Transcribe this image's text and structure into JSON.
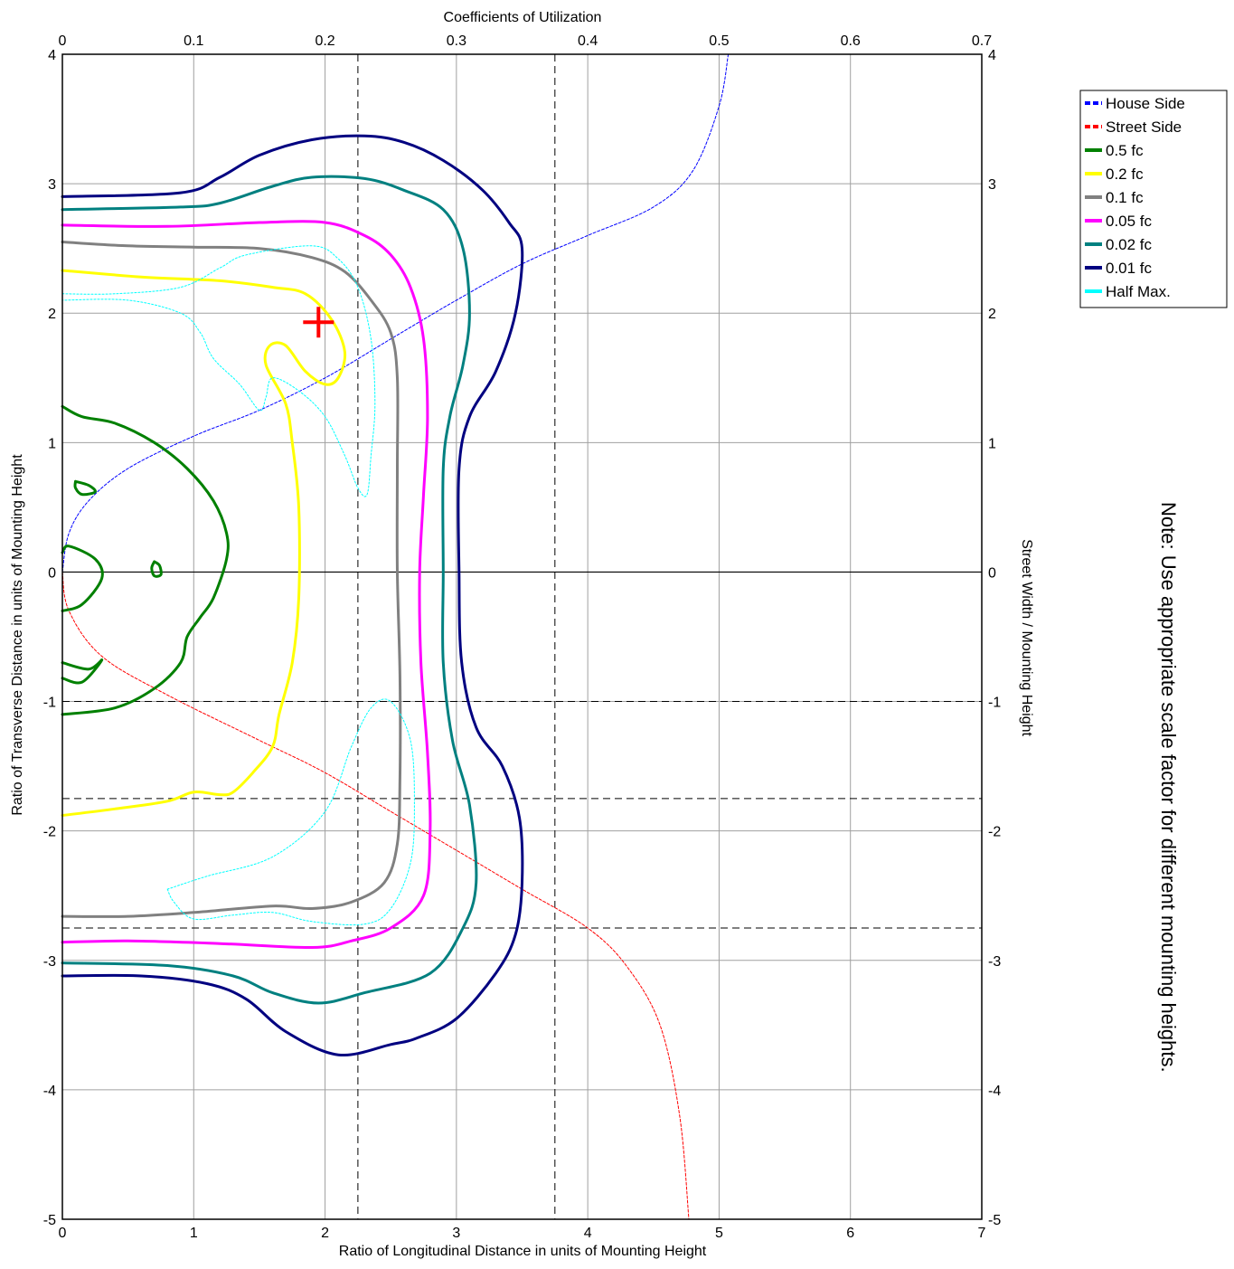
{
  "chart_data": {
    "type": "line",
    "title": "",
    "top_axis_label": "Coefficients of Utilization",
    "xlabel": "Ratio of Longitudinal Distance in units of Mounting Height",
    "ylabel_left": "Ratio of Transverse Distance in units of Mounting Height",
    "ylabel_right": "Street Width / Mounting Height",
    "xlim": [
      0,
      7
    ],
    "ylim": [
      -5,
      4
    ],
    "top_xlim": [
      0,
      0.7
    ],
    "x_ticks": [
      "0",
      "1",
      "2",
      "3",
      "4",
      "5",
      "6",
      "7"
    ],
    "y_ticks": [
      "4",
      "3",
      "2",
      "1",
      "0",
      "-1",
      "-2",
      "-3",
      "-4",
      "-5"
    ],
    "top_ticks": [
      "0",
      "0.1",
      "0.2",
      "0.3",
      "0.4",
      "0.5",
      "0.6",
      "0.7"
    ],
    "grid": true,
    "legend_position": "top-right",
    "reference_lines": {
      "vertical": [
        2.25,
        3.75
      ],
      "horizontal_dashed": [
        -1,
        -1.75,
        -2.75
      ],
      "horizontal_solid": [
        0
      ]
    },
    "max_candela_marker": {
      "x": 1.95,
      "y": 1.93,
      "color": "#ff0000"
    },
    "series": [
      {
        "name": "House Side",
        "color": "#0000ff",
        "style": "dashed",
        "points": [
          [
            0,
            0
          ],
          [
            0.05,
            0.3
          ],
          [
            0.2,
            0.55
          ],
          [
            0.5,
            0.8
          ],
          [
            1,
            1.05
          ],
          [
            1.5,
            1.25
          ],
          [
            2,
            1.5
          ],
          [
            2.5,
            1.8
          ],
          [
            3,
            2.1
          ],
          [
            3.5,
            2.38
          ],
          [
            4,
            2.6
          ],
          [
            4.5,
            2.82
          ],
          [
            4.8,
            3.1
          ],
          [
            5,
            3.6
          ],
          [
            5.07,
            4
          ]
        ]
      },
      {
        "name": "Street Side",
        "color": "#ff0000",
        "style": "dashed",
        "points": [
          [
            0,
            0
          ],
          [
            0.05,
            -0.3
          ],
          [
            0.3,
            -0.65
          ],
          [
            0.8,
            -0.95
          ],
          [
            1.5,
            -1.3
          ],
          [
            2,
            -1.55
          ],
          [
            2.5,
            -1.85
          ],
          [
            3,
            -2.15
          ],
          [
            3.5,
            -2.45
          ],
          [
            4,
            -2.75
          ],
          [
            4.3,
            -3.05
          ],
          [
            4.55,
            -3.5
          ],
          [
            4.7,
            -4.2
          ],
          [
            4.77,
            -5
          ]
        ]
      },
      {
        "name": "0.5 fc",
        "color": "#008000",
        "style": "solid",
        "paths": [
          [
            [
              0,
              1.28
            ],
            [
              0.15,
              1.2
            ],
            [
              0.4,
              1.15
            ],
            [
              0.7,
              1.0
            ],
            [
              0.95,
              0.8
            ],
            [
              1.15,
              0.55
            ],
            [
              1.25,
              0.3
            ],
            [
              1.25,
              0.1
            ],
            [
              1.15,
              -0.2
            ],
            [
              1.05,
              -0.35
            ],
            [
              0.95,
              -0.5
            ],
            [
              0.9,
              -0.7
            ],
            [
              0.7,
              -0.9
            ],
            [
              0.4,
              -1.05
            ],
            [
              0,
              -1.1
            ]
          ],
          [
            [
              0,
              -0.3
            ],
            [
              0.15,
              -0.25
            ],
            [
              0.3,
              -0.05
            ],
            [
              0.25,
              0.1
            ],
            [
              0.05,
              0.2
            ],
            [
              0,
              0.15
            ]
          ],
          [
            [
              0,
              -0.7
            ],
            [
              0.2,
              -0.75
            ],
            [
              0.3,
              -0.68
            ],
            [
              0.15,
              -0.85
            ],
            [
              0,
              -0.82
            ]
          ],
          [
            [
              0.1,
              0.7
            ],
            [
              0.2,
              0.67
            ],
            [
              0.25,
              0.62
            ],
            [
              0.15,
              0.6
            ],
            [
              0.1,
              0.65
            ],
            [
              0.1,
              0.7
            ]
          ],
          [
            [
              0.7,
              0.08
            ],
            [
              0.74,
              0.05
            ],
            [
              0.75,
              -0.02
            ],
            [
              0.7,
              -0.03
            ],
            [
              0.68,
              0.03
            ],
            [
              0.7,
              0.08
            ]
          ]
        ]
      },
      {
        "name": "0.2 fc",
        "color": "#ffff00",
        "style": "solid",
        "paths": [
          [
            [
              0,
              2.33
            ],
            [
              0.6,
              2.28
            ],
            [
              1.2,
              2.25
            ],
            [
              1.6,
              2.2
            ],
            [
              1.85,
              2.15
            ],
            [
              2.05,
              1.95
            ],
            [
              2.15,
              1.7
            ],
            [
              2.1,
              1.5
            ],
            [
              2.0,
              1.45
            ],
            [
              1.85,
              1.55
            ],
            [
              1.7,
              1.75
            ],
            [
              1.58,
              1.75
            ],
            [
              1.55,
              1.6
            ],
            [
              1.7,
              1.3
            ],
            [
              1.75,
              1.0
            ],
            [
              1.8,
              0.5
            ],
            [
              1.8,
              -0.2
            ],
            [
              1.75,
              -0.7
            ],
            [
              1.65,
              -1.1
            ],
            [
              1.6,
              -1.35
            ],
            [
              1.45,
              -1.55
            ],
            [
              1.3,
              -1.7
            ],
            [
              1.2,
              -1.72
            ],
            [
              1.0,
              -1.7
            ],
            [
              0.8,
              -1.77
            ],
            [
              0.4,
              -1.83
            ],
            [
              0,
              -1.88
            ]
          ]
        ]
      },
      {
        "name": "0.1 fc",
        "color": "#808080",
        "style": "solid",
        "paths": [
          [
            [
              0,
              2.55
            ],
            [
              0.5,
              2.52
            ],
            [
              1.0,
              2.51
            ],
            [
              1.5,
              2.5
            ],
            [
              1.9,
              2.43
            ],
            [
              2.15,
              2.32
            ],
            [
              2.35,
              2.1
            ],
            [
              2.5,
              1.85
            ],
            [
              2.55,
              1.5
            ],
            [
              2.55,
              0.8
            ],
            [
              2.55,
              0
            ],
            [
              2.57,
              -0.8
            ],
            [
              2.57,
              -1.6
            ],
            [
              2.55,
              -2.1
            ],
            [
              2.45,
              -2.4
            ],
            [
              2.2,
              -2.55
            ],
            [
              1.9,
              -2.6
            ],
            [
              1.6,
              -2.58
            ],
            [
              1.0,
              -2.63
            ],
            [
              0.5,
              -2.66
            ],
            [
              0,
              -2.66
            ]
          ]
        ]
      },
      {
        "name": "0.05 fc",
        "color": "#ff00ff",
        "style": "solid",
        "paths": [
          [
            [
              0,
              2.68
            ],
            [
              0.8,
              2.67
            ],
            [
              1.5,
              2.7
            ],
            [
              2.0,
              2.7
            ],
            [
              2.3,
              2.6
            ],
            [
              2.5,
              2.45
            ],
            [
              2.65,
              2.2
            ],
            [
              2.75,
              1.8
            ],
            [
              2.78,
              1.2
            ],
            [
              2.75,
              0.6
            ],
            [
              2.72,
              0
            ],
            [
              2.73,
              -0.7
            ],
            [
              2.78,
              -1.4
            ],
            [
              2.8,
              -2.0
            ],
            [
              2.75,
              -2.5
            ],
            [
              2.5,
              -2.75
            ],
            [
              2.2,
              -2.85
            ],
            [
              1.9,
              -2.9
            ],
            [
              1.2,
              -2.87
            ],
            [
              0.5,
              -2.85
            ],
            [
              0,
              -2.86
            ]
          ]
        ]
      },
      {
        "name": "0.02 fc",
        "color": "#008080",
        "style": "solid",
        "paths": [
          [
            [
              0,
              2.8
            ],
            [
              0.9,
              2.82
            ],
            [
              1.2,
              2.85
            ],
            [
              1.6,
              2.98
            ],
            [
              1.9,
              3.05
            ],
            [
              2.3,
              3.04
            ],
            [
              2.6,
              2.95
            ],
            [
              2.9,
              2.8
            ],
            [
              3.05,
              2.5
            ],
            [
              3.1,
              2.0
            ],
            [
              3.05,
              1.6
            ],
            [
              2.95,
              1.2
            ],
            [
              2.9,
              0.8
            ],
            [
              2.9,
              0
            ],
            [
              2.9,
              -0.7
            ],
            [
              2.97,
              -1.3
            ],
            [
              3.1,
              -1.8
            ],
            [
              3.15,
              -2.4
            ],
            [
              3.05,
              -2.75
            ],
            [
              2.8,
              -3.1
            ],
            [
              2.3,
              -3.25
            ],
            [
              1.95,
              -3.33
            ],
            [
              1.6,
              -3.25
            ],
            [
              1.3,
              -3.12
            ],
            [
              0.8,
              -3.04
            ],
            [
              0,
              -3.02
            ]
          ]
        ]
      },
      {
        "name": "0.01 fc",
        "color": "#000080",
        "style": "solid",
        "paths": [
          [
            [
              0,
              2.9
            ],
            [
              0.9,
              2.93
            ],
            [
              1.2,
              3.05
            ],
            [
              1.5,
              3.22
            ],
            [
              1.9,
              3.34
            ],
            [
              2.3,
              3.37
            ],
            [
              2.6,
              3.32
            ],
            [
              2.9,
              3.18
            ],
            [
              3.2,
              2.95
            ],
            [
              3.4,
              2.7
            ],
            [
              3.5,
              2.5
            ],
            [
              3.45,
              2.0
            ],
            [
              3.3,
              1.55
            ],
            [
              3.1,
              1.2
            ],
            [
              3.02,
              0.8
            ],
            [
              3.02,
              0
            ],
            [
              3.04,
              -0.7
            ],
            [
              3.15,
              -1.2
            ],
            [
              3.35,
              -1.5
            ],
            [
              3.48,
              -1.9
            ],
            [
              3.5,
              -2.4
            ],
            [
              3.45,
              -2.8
            ],
            [
              3.3,
              -3.1
            ],
            [
              3.0,
              -3.45
            ],
            [
              2.7,
              -3.6
            ],
            [
              2.5,
              -3.65
            ],
            [
              2.1,
              -3.73
            ],
            [
              1.7,
              -3.55
            ],
            [
              1.4,
              -3.3
            ],
            [
              1.1,
              -3.18
            ],
            [
              0.6,
              -3.12
            ],
            [
              0,
              -3.12
            ]
          ]
        ]
      },
      {
        "name": "Half Max.",
        "color": "#00ffff",
        "style": "dotted",
        "paths": [
          [
            [
              0,
              2.15
            ],
            [
              0.4,
              2.15
            ],
            [
              0.9,
              2.2
            ],
            [
              1.2,
              2.35
            ],
            [
              1.4,
              2.45
            ],
            [
              1.9,
              2.52
            ],
            [
              2.1,
              2.42
            ],
            [
              2.25,
              2.2
            ],
            [
              2.35,
              1.8
            ],
            [
              2.38,
              1.3
            ],
            [
              2.35,
              0.9
            ],
            [
              2.32,
              0.6
            ],
            [
              2.25,
              0.65
            ],
            [
              2.15,
              0.9
            ],
            [
              2.0,
              1.2
            ],
            [
              1.8,
              1.4
            ],
            [
              1.6,
              1.5
            ],
            [
              1.55,
              1.35
            ],
            [
              1.5,
              1.25
            ],
            [
              1.35,
              1.45
            ],
            [
              1.15,
              1.65
            ],
            [
              1.05,
              1.85
            ],
            [
              0.9,
              2.0
            ],
            [
              0.5,
              2.1
            ],
            [
              0,
              2.1
            ]
          ],
          [
            [
              0.8,
              -2.45
            ],
            [
              1.1,
              -2.35
            ],
            [
              1.6,
              -2.2
            ],
            [
              2.0,
              -1.85
            ],
            [
              2.2,
              -1.35
            ],
            [
              2.35,
              -1.05
            ],
            [
              2.5,
              -1.0
            ],
            [
              2.65,
              -1.3
            ],
            [
              2.68,
              -1.8
            ],
            [
              2.65,
              -2.25
            ],
            [
              2.5,
              -2.6
            ],
            [
              2.3,
              -2.72
            ],
            [
              1.9,
              -2.7
            ],
            [
              1.6,
              -2.63
            ],
            [
              1.3,
              -2.65
            ],
            [
              1.0,
              -2.68
            ],
            [
              0.85,
              -2.55
            ],
            [
              0.8,
              -2.45
            ]
          ]
        ]
      }
    ]
  },
  "note_text": "Note: Use appropriate scale factor for different mounting heights."
}
